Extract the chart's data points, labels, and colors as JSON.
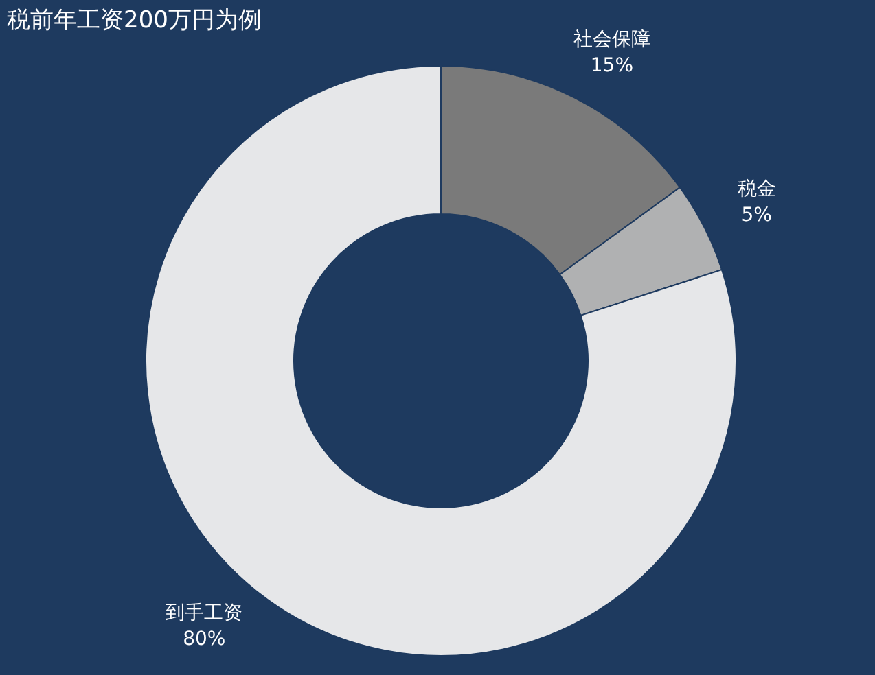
{
  "chart_data": {
    "type": "donut",
    "title": "税前年工资200万円为例",
    "categories": [
      "社会保障",
      "税金",
      "到手工资"
    ],
    "values": [
      15,
      5,
      80
    ],
    "value_labels": [
      "15%",
      "5%",
      "80%"
    ],
    "colors": [
      "#7a7a7a",
      "#b0b1b2",
      "#e6e7e9"
    ]
  }
}
